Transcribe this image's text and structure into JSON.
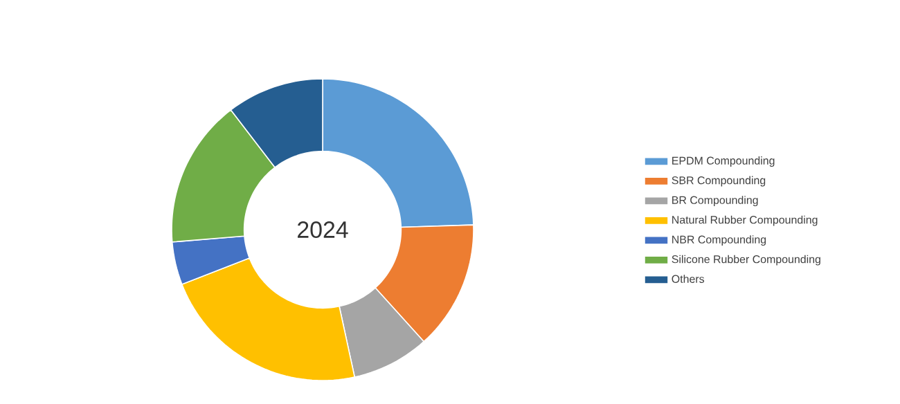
{
  "chart_data": {
    "type": "donut",
    "title": "2024",
    "categories": [
      "EPDM Compounding",
      "SBR Compounding",
      "BR Compounding",
      "Natural Rubber Compounding",
      "NBR Compounding",
      "Silicone Rubber Compounding",
      "Others"
    ],
    "values": [
      24.5,
      13.8,
      8.3,
      22.5,
      4.6,
      15.9,
      10.4
    ],
    "colors": [
      "#5b9bd5",
      "#ed7d31",
      "#a5a5a5",
      "#ffc000",
      "#4472c4",
      "#70ad47",
      "#255e91"
    ],
    "legend": "right"
  }
}
